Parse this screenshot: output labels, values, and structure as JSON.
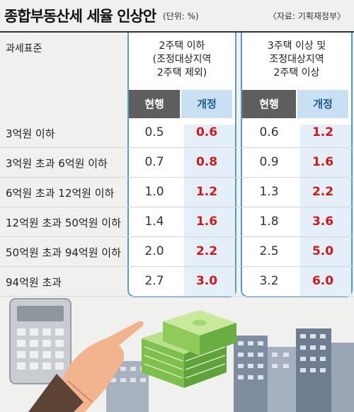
{
  "header": {
    "title": "종합부동산세 세율 인상안",
    "unit": "(단위: %)",
    "source": "〈자료: 기획재정부〉"
  },
  "chart_data": {
    "type": "table",
    "row_header": "과세표준",
    "groups": [
      {
        "name_lines": [
          "2주택 이하",
          "(조정대상지역",
          "2주택 제외)"
        ]
      },
      {
        "name_lines": [
          "3주택 이상 및",
          "조정대상지역",
          "2주택 이상"
        ]
      }
    ],
    "columns": [
      "현행",
      "개정"
    ],
    "rows": [
      {
        "label": "3억원 이하",
        "values": [
          "0.5",
          "0.6",
          "0.6",
          "1.2"
        ]
      },
      {
        "label": "3억원 초과 6억원 이하",
        "values": [
          "0.7",
          "0.8",
          "0.9",
          "1.6"
        ]
      },
      {
        "label": "6억원 초과 12억원 이하",
        "values": [
          "1.0",
          "1.2",
          "1.3",
          "2.2"
        ]
      },
      {
        "label": "12억원 초과 50억원 이하",
        "values": [
          "1.4",
          "1.6",
          "1.8",
          "3.6"
        ]
      },
      {
        "label": "50억원 초과 94억원 이하",
        "values": [
          "2.0",
          "2.2",
          "2.5",
          "5.0"
        ]
      },
      {
        "label": "94억원 초과",
        "values": [
          "2.7",
          "3.0",
          "3.2",
          "6.0"
        ]
      }
    ]
  },
  "colors": {
    "frame": "#5a9cc9",
    "current_header": "#5e5e5e",
    "revised_header": "#c9dff2",
    "revised_value": "#d01818"
  },
  "illustration": {
    "items": [
      "calculator-icon",
      "pointing-hand-icon",
      "money-stack-icon",
      "apartment-buildings-icon"
    ]
  }
}
